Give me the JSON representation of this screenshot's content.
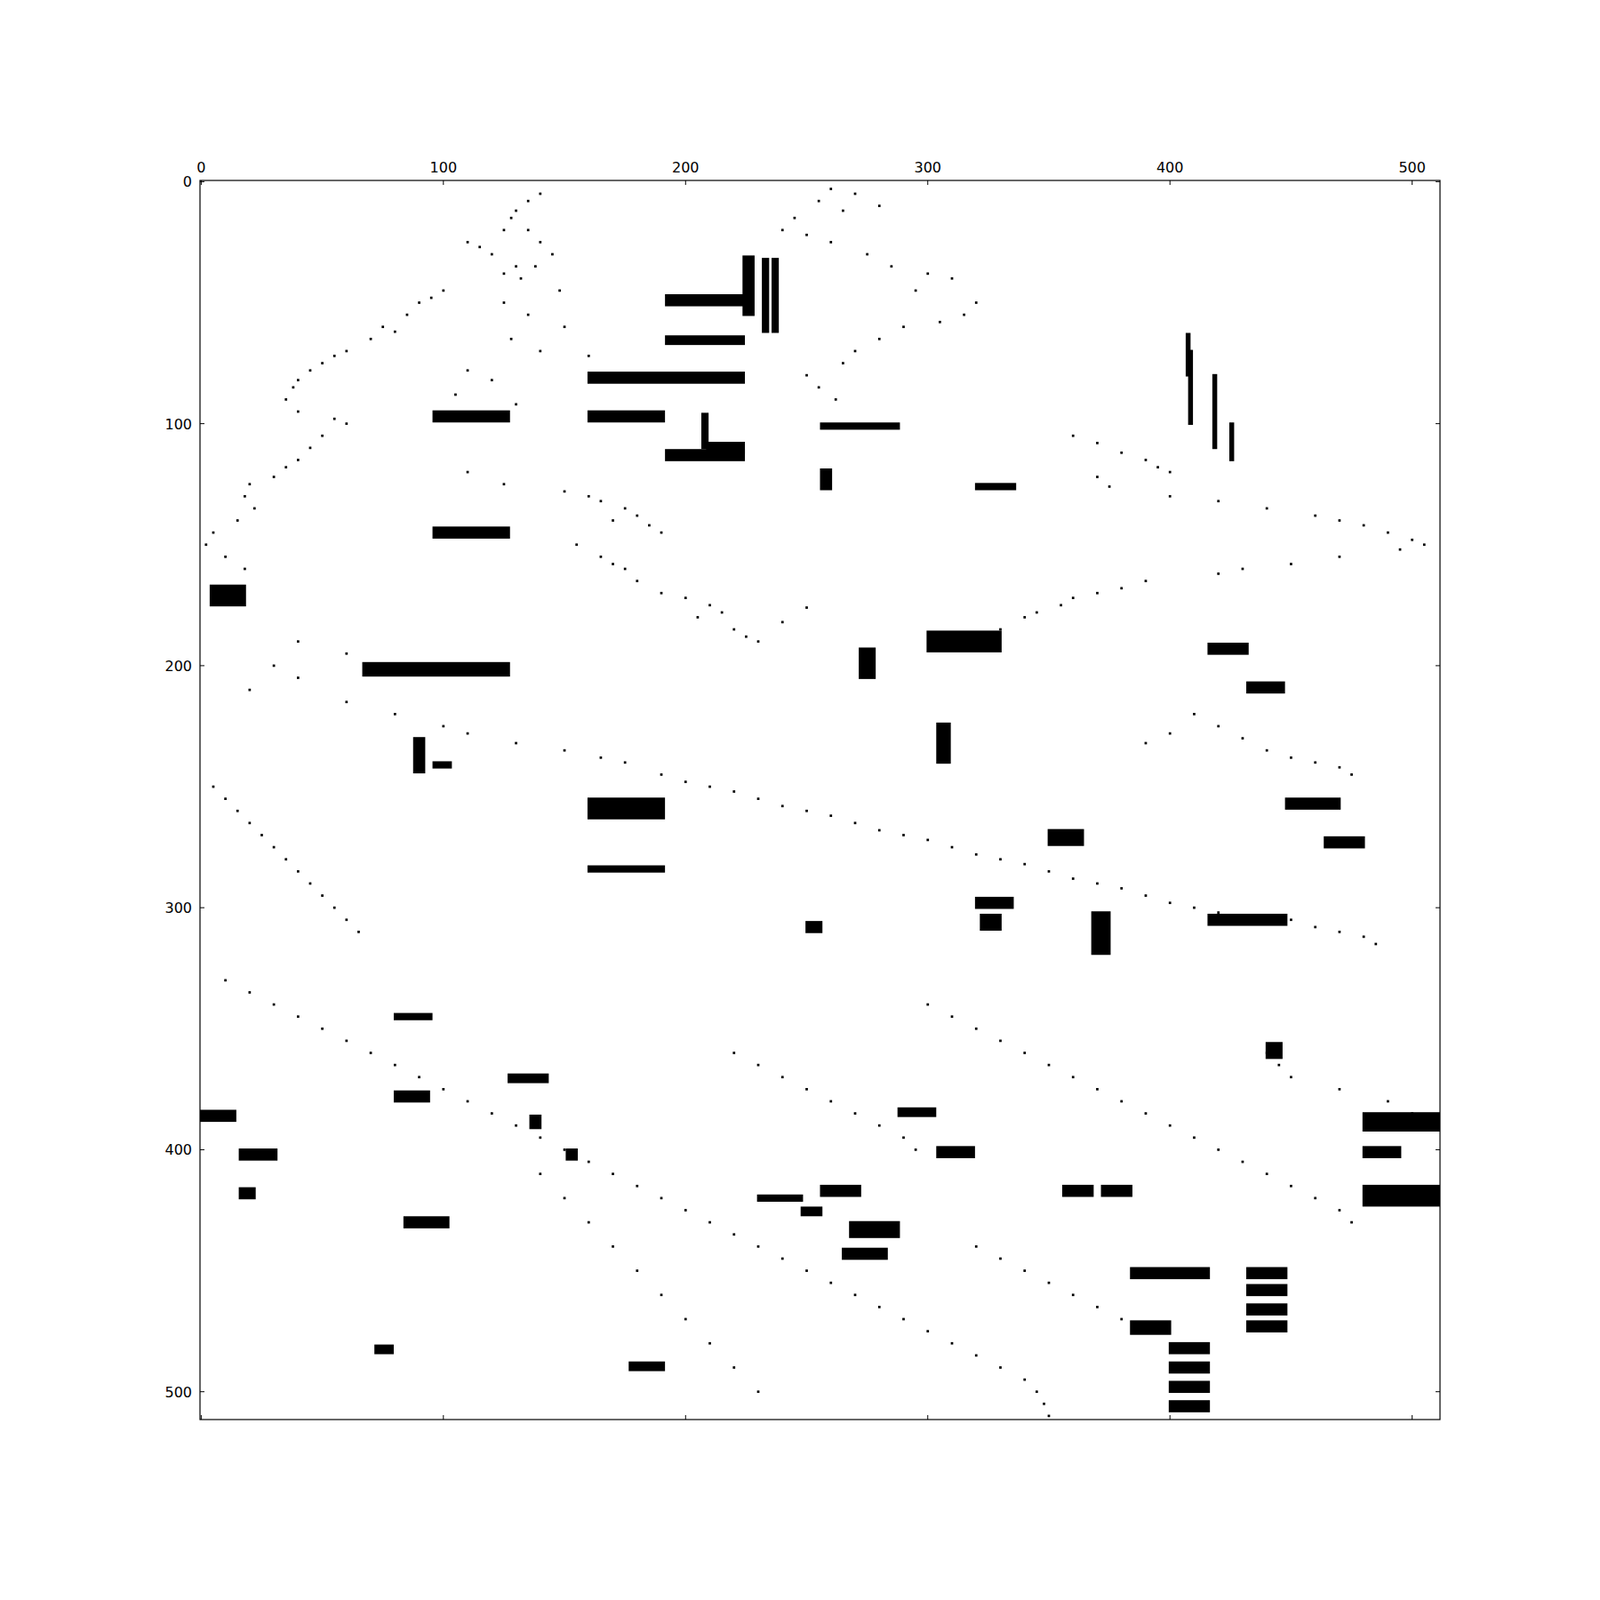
{
  "chart_data": {
    "type": "spy",
    "color": "#000000",
    "xlim": [
      -0.5,
      511.5
    ],
    "ylim": [
      511.5,
      -0.5
    ],
    "xticks": [
      0,
      100,
      200,
      300,
      400,
      500
    ],
    "yticks": [
      0,
      100,
      200,
      300,
      400,
      500
    ],
    "blocks": [
      [
        47,
        51,
        192,
        227
      ],
      [
        64,
        67,
        192,
        224
      ],
      [
        79,
        83,
        160,
        224
      ],
      [
        95,
        99,
        96,
        127
      ],
      [
        95,
        99,
        160,
        191
      ],
      [
        111,
        115,
        192,
        224
      ],
      [
        143,
        147,
        96,
        127
      ],
      [
        31,
        55,
        224,
        228
      ],
      [
        32,
        62,
        232,
        234
      ],
      [
        32,
        62,
        236,
        238
      ],
      [
        70,
        100,
        408,
        409
      ],
      [
        80,
        110,
        418,
        419
      ],
      [
        100,
        115,
        425,
        426
      ],
      [
        63,
        80,
        407,
        408
      ],
      [
        191,
        195,
        416,
        432
      ],
      [
        207,
        211,
        432,
        447
      ],
      [
        255,
        259,
        448,
        470
      ],
      [
        271,
        275,
        464,
        480
      ],
      [
        303,
        307,
        416,
        448
      ],
      [
        255,
        263,
        160,
        191
      ],
      [
        385,
        392,
        480,
        511
      ],
      [
        399,
        403,
        480,
        495
      ],
      [
        415,
        423,
        480,
        511
      ],
      [
        449,
        453,
        384,
        416
      ],
      [
        449,
        453,
        432,
        448
      ],
      [
        456,
        460,
        432,
        448
      ],
      [
        464,
        468,
        432,
        448
      ],
      [
        471,
        475,
        432,
        448
      ],
      [
        471,
        476,
        384,
        400
      ],
      [
        480,
        484,
        400,
        416
      ],
      [
        488,
        492,
        400,
        416
      ],
      [
        496,
        500,
        400,
        416
      ],
      [
        504,
        508,
        400,
        416
      ],
      [
        302,
        319,
        368,
        375
      ],
      [
        383,
        386,
        288,
        303
      ],
      [
        399,
        403,
        304,
        319
      ],
      [
        415,
        419,
        256,
        272
      ],
      [
        415,
        419,
        356,
        368
      ],
      [
        415,
        419,
        372,
        384
      ],
      [
        430,
        436,
        268,
        288
      ],
      [
        369,
        372,
        127,
        143
      ],
      [
        386,
        391,
        136,
        140
      ],
      [
        400,
        404,
        151,
        155
      ],
      [
        199,
        204,
        67,
        127
      ],
      [
        384,
        388,
        0,
        14
      ],
      [
        400,
        404,
        16,
        31
      ],
      [
        416,
        420,
        16,
        22
      ],
      [
        428,
        432,
        84,
        102
      ],
      [
        481,
        484,
        72,
        79
      ],
      [
        488,
        491,
        177,
        191
      ],
      [
        419,
        421,
        230,
        248
      ],
      [
        424,
        427,
        248,
        256
      ],
      [
        125,
        127,
        320,
        336
      ],
      [
        100,
        102,
        256,
        288
      ],
      [
        119,
        127,
        256,
        260
      ],
      [
        193,
        205,
        272,
        278
      ],
      [
        224,
        240,
        304,
        309
      ],
      [
        296,
        300,
        320,
        335
      ],
      [
        303,
        309,
        322,
        330
      ],
      [
        268,
        274,
        350,
        364
      ],
      [
        167,
        175,
        4,
        18
      ],
      [
        230,
        244,
        88,
        92
      ],
      [
        240,
        242,
        96,
        103
      ],
      [
        96,
        110,
        207,
        209
      ],
      [
        108,
        112,
        209,
        224
      ],
      [
        283,
        285,
        160,
        191
      ],
      [
        376,
        380,
        80,
        94
      ],
      [
        344,
        346,
        80,
        95
      ],
      [
        441,
        445,
        265,
        283
      ],
      [
        306,
        310,
        250,
        256
      ],
      [
        186,
        194,
        300,
        330
      ],
      [
        356,
        362,
        440,
        446
      ]
    ],
    "points": [
      [
        5,
        140
      ],
      [
        8,
        135
      ],
      [
        12,
        130
      ],
      [
        15,
        128
      ],
      [
        20,
        125
      ],
      [
        25,
        110
      ],
      [
        27,
        115
      ],
      [
        30,
        120
      ],
      [
        35,
        130
      ],
      [
        38,
        125
      ],
      [
        45,
        100
      ],
      [
        48,
        95
      ],
      [
        50,
        90
      ],
      [
        55,
        85
      ],
      [
        60,
        75
      ],
      [
        62,
        80
      ],
      [
        65,
        70
      ],
      [
        70,
        60
      ],
      [
        72,
        55
      ],
      [
        75,
        50
      ],
      [
        78,
        45
      ],
      [
        82,
        40
      ],
      [
        85,
        38
      ],
      [
        90,
        35
      ],
      [
        95,
        40
      ],
      [
        98,
        55
      ],
      [
        100,
        60
      ],
      [
        105,
        50
      ],
      [
        110,
        45
      ],
      [
        115,
        40
      ],
      [
        118,
        35
      ],
      [
        122,
        30
      ],
      [
        125,
        20
      ],
      [
        130,
        18
      ],
      [
        135,
        22
      ],
      [
        140,
        15
      ],
      [
        145,
        5
      ],
      [
        150,
        2
      ],
      [
        155,
        10
      ],
      [
        160,
        18
      ],
      [
        3,
        260
      ],
      [
        5,
        270
      ],
      [
        8,
        255
      ],
      [
        10,
        280
      ],
      [
        12,
        265
      ],
      [
        15,
        245
      ],
      [
        20,
        240
      ],
      [
        22,
        250
      ],
      [
        25,
        260
      ],
      [
        30,
        275
      ],
      [
        35,
        285
      ],
      [
        38,
        300
      ],
      [
        40,
        310
      ],
      [
        45,
        295
      ],
      [
        50,
        320
      ],
      [
        55,
        315
      ],
      [
        58,
        305
      ],
      [
        60,
        290
      ],
      [
        65,
        280
      ],
      [
        70,
        270
      ],
      [
        75,
        265
      ],
      [
        80,
        250
      ],
      [
        85,
        255
      ],
      [
        90,
        262
      ],
      [
        20,
        135
      ],
      [
        25,
        140
      ],
      [
        30,
        145
      ],
      [
        35,
        138
      ],
      [
        40,
        132
      ],
      [
        45,
        148
      ],
      [
        50,
        125
      ],
      [
        55,
        135
      ],
      [
        60,
        150
      ],
      [
        65,
        128
      ],
      [
        70,
        140
      ],
      [
        72,
        160
      ],
      [
        78,
        110
      ],
      [
        82,
        120
      ],
      [
        88,
        105
      ],
      [
        92,
        130
      ],
      [
        120,
        110
      ],
      [
        125,
        125
      ],
      [
        128,
        150
      ],
      [
        130,
        160
      ],
      [
        132,
        165
      ],
      [
        135,
        175
      ],
      [
        138,
        180
      ],
      [
        140,
        170
      ],
      [
        142,
        185
      ],
      [
        145,
        190
      ],
      [
        150,
        155
      ],
      [
        155,
        165
      ],
      [
        158,
        170
      ],
      [
        160,
        175
      ],
      [
        165,
        180
      ],
      [
        170,
        190
      ],
      [
        172,
        200
      ],
      [
        175,
        210
      ],
      [
        178,
        215
      ],
      [
        180,
        205
      ],
      [
        185,
        220
      ],
      [
        188,
        225
      ],
      [
        190,
        230
      ],
      [
        182,
        240
      ],
      [
        176,
        250
      ],
      [
        105,
        360
      ],
      [
        108,
        370
      ],
      [
        112,
        380
      ],
      [
        115,
        390
      ],
      [
        118,
        395
      ],
      [
        120,
        400
      ],
      [
        122,
        370
      ],
      [
        126,
        375
      ],
      [
        130,
        400
      ],
      [
        132,
        420
      ],
      [
        135,
        440
      ],
      [
        138,
        460
      ],
      [
        140,
        470
      ],
      [
        142,
        480
      ],
      [
        145,
        490
      ],
      [
        148,
        500
      ],
      [
        150,
        505
      ],
      [
        152,
        495
      ],
      [
        155,
        470
      ],
      [
        158,
        450
      ],
      [
        160,
        430
      ],
      [
        162,
        420
      ],
      [
        165,
        390
      ],
      [
        168,
        380
      ],
      [
        170,
        370
      ],
      [
        172,
        360
      ],
      [
        175,
        355
      ],
      [
        178,
        345
      ],
      [
        180,
        340
      ],
      [
        185,
        330
      ],
      [
        190,
        40
      ],
      [
        195,
        60
      ],
      [
        200,
        30
      ],
      [
        205,
        40
      ],
      [
        210,
        20
      ],
      [
        215,
        60
      ],
      [
        220,
        80
      ],
      [
        225,
        100
      ],
      [
        228,
        110
      ],
      [
        232,
        130
      ],
      [
        235,
        150
      ],
      [
        238,
        165
      ],
      [
        240,
        175
      ],
      [
        245,
        190
      ],
      [
        248,
        200
      ],
      [
        250,
        210
      ],
      [
        252,
        220
      ],
      [
        255,
        230
      ],
      [
        258,
        240
      ],
      [
        260,
        250
      ],
      [
        262,
        260
      ],
      [
        265,
        270
      ],
      [
        268,
        280
      ],
      [
        270,
        290
      ],
      [
        272,
        300
      ],
      [
        275,
        310
      ],
      [
        278,
        320
      ],
      [
        280,
        330
      ],
      [
        282,
        340
      ],
      [
        285,
        350
      ],
      [
        288,
        360
      ],
      [
        290,
        370
      ],
      [
        292,
        380
      ],
      [
        295,
        390
      ],
      [
        298,
        400
      ],
      [
        300,
        410
      ],
      [
        302,
        420
      ],
      [
        305,
        450
      ],
      [
        308,
        460
      ],
      [
        310,
        470
      ],
      [
        312,
        480
      ],
      [
        315,
        485
      ],
      [
        220,
        410
      ],
      [
        225,
        420
      ],
      [
        230,
        430
      ],
      [
        235,
        440
      ],
      [
        238,
        450
      ],
      [
        240,
        460
      ],
      [
        242,
        470
      ],
      [
        245,
        475
      ],
      [
        228,
        400
      ],
      [
        232,
        390
      ],
      [
        250,
        5
      ],
      [
        255,
        10
      ],
      [
        260,
        15
      ],
      [
        265,
        20
      ],
      [
        270,
        25
      ],
      [
        275,
        30
      ],
      [
        280,
        35
      ],
      [
        285,
        40
      ],
      [
        290,
        45
      ],
      [
        295,
        50
      ],
      [
        300,
        55
      ],
      [
        305,
        60
      ],
      [
        310,
        65
      ],
      [
        330,
        10
      ],
      [
        335,
        20
      ],
      [
        340,
        30
      ],
      [
        345,
        40
      ],
      [
        350,
        50
      ],
      [
        355,
        60
      ],
      [
        360,
        70
      ],
      [
        365,
        80
      ],
      [
        370,
        90
      ],
      [
        375,
        100
      ],
      [
        380,
        110
      ],
      [
        385,
        120
      ],
      [
        390,
        130
      ],
      [
        395,
        140
      ],
      [
        400,
        150
      ],
      [
        405,
        160
      ],
      [
        410,
        170
      ],
      [
        415,
        180
      ],
      [
        420,
        190
      ],
      [
        425,
        200
      ],
      [
        430,
        210
      ],
      [
        435,
        220
      ],
      [
        440,
        230
      ],
      [
        445,
        240
      ],
      [
        450,
        250
      ],
      [
        455,
        260
      ],
      [
        460,
        270
      ],
      [
        465,
        280
      ],
      [
        470,
        290
      ],
      [
        475,
        300
      ],
      [
        480,
        310
      ],
      [
        485,
        320
      ],
      [
        490,
        330
      ],
      [
        495,
        340
      ],
      [
        500,
        345
      ],
      [
        505,
        348
      ],
      [
        510,
        350
      ],
      [
        340,
        300
      ],
      [
        345,
        310
      ],
      [
        350,
        320
      ],
      [
        355,
        330
      ],
      [
        360,
        340
      ],
      [
        365,
        350
      ],
      [
        370,
        360
      ],
      [
        375,
        370
      ],
      [
        380,
        380
      ],
      [
        385,
        390
      ],
      [
        390,
        400
      ],
      [
        395,
        410
      ],
      [
        400,
        420
      ],
      [
        405,
        430
      ],
      [
        410,
        440
      ],
      [
        415,
        450
      ],
      [
        420,
        460
      ],
      [
        425,
        470
      ],
      [
        430,
        475
      ],
      [
        360,
        440
      ],
      [
        365,
        445
      ],
      [
        370,
        450
      ],
      [
        375,
        470
      ],
      [
        380,
        490
      ],
      [
        385,
        500
      ],
      [
        390,
        505
      ],
      [
        440,
        320
      ],
      [
        445,
        330
      ],
      [
        450,
        340
      ],
      [
        455,
        350
      ],
      [
        460,
        360
      ],
      [
        465,
        370
      ],
      [
        470,
        380
      ],
      [
        360,
        220
      ],
      [
        365,
        230
      ],
      [
        370,
        240
      ],
      [
        375,
        250
      ],
      [
        380,
        260
      ],
      [
        385,
        270
      ],
      [
        390,
        280
      ],
      [
        395,
        290
      ],
      [
        400,
        295
      ],
      [
        410,
        140
      ],
      [
        420,
        150
      ],
      [
        430,
        160
      ],
      [
        440,
        170
      ],
      [
        450,
        180
      ],
      [
        460,
        190
      ],
      [
        470,
        200
      ],
      [
        480,
        210
      ],
      [
        490,
        220
      ],
      [
        500,
        230
      ]
    ]
  }
}
